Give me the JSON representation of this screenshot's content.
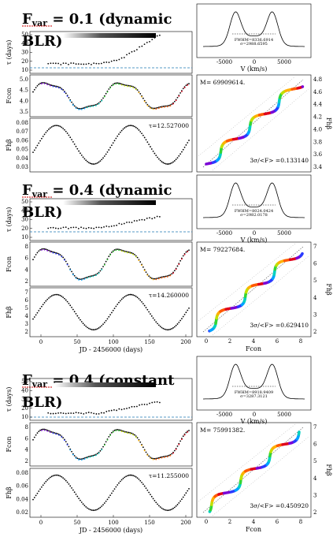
{
  "panels": [
    {
      "title_main": "F",
      "title_sub": "var",
      "title_rest": " = 0.1 (dynamic",
      "title_line2": "BLR)",
      "mbh": "69909614.",
      "sigma_ratio": "3σ/<F> =0.133140",
      "tau_text": "τ=12.527000",
      "fwhm": "FWHM=8336.6914",
      "sigma_v": "σ=2988.6595",
      "flux_label_x": "Fcon",
      "flux_label_y": "Fhβ"
    },
    {
      "title_main": "F",
      "title_sub": "var",
      "title_rest": " = 0.4 (dynamic",
      "title_line2": "BLR)",
      "mbh": "79227684.",
      "sigma_ratio": "3σ/<F> =0.629410",
      "tau_text": "τ=14.260000",
      "fwhm": "FWHM=8024.0424",
      "sigma_v": "σ=2982.0178",
      "flux_label_x": "Fcon",
      "flux_label_y": "Fhβ"
    },
    {
      "title_main": "F",
      "title_sub": "var",
      "title_rest": " = 0.4 (constant",
      "title_line2": "BLR)",
      "mbh": "75991382.",
      "sigma_ratio": "3σ/<F> =0.450920",
      "tau_text": "τ=11.255000",
      "fwhm": "FWHM=8918.9409",
      "sigma_v": "σ=3287.3121",
      "flux_label_x": "Fcon",
      "flux_label_y": "Fhβ"
    }
  ],
  "axes": {
    "tau_label": "τ (days)",
    "fcon_label": "Fcon",
    "fhb_label": "Fhβ",
    "v_label": "V (km/s)",
    "jd_label": "JD - 2456000 (days)"
  },
  "chart_data": [
    {
      "type": "line",
      "title": "Fvar = 0.1 (dynamic BLR)",
      "tau_series": {
        "x": [
          10,
          20,
          30,
          40,
          50,
          60,
          70,
          80,
          90,
          100,
          110,
          120,
          130,
          140,
          150,
          160
        ],
        "y": [
          10,
          10,
          11,
          11,
          12,
          13,
          14,
          15,
          18,
          22,
          30,
          36,
          38,
          40,
          42,
          48
        ]
      },
      "fcon_ylim": [
        3.4,
        5.2
      ],
      "fhb_ylim": [
        0.02,
        0.085
      ],
      "fhb_series": {
        "x": [
          0,
          20,
          40,
          60,
          80,
          100,
          120,
          140,
          160,
          180,
          200
        ],
        "y": [
          0.068,
          0.072,
          0.08,
          0.06,
          0.03,
          0.05,
          0.082,
          0.055,
          0.032,
          0.03,
          0.042
        ]
      },
      "tau": 12.527
    },
    {
      "type": "line",
      "title": "Fvar = 0.4 (dynamic BLR)",
      "fcon_ylim": [
        1.5,
        8.5
      ],
      "tau": 14.26
    },
    {
      "type": "line",
      "title": "Fvar = 0.4 (constant BLR)",
      "fcon_ylim": [
        1.5,
        8.5
      ],
      "tau": 11.255
    }
  ],
  "ticks": {
    "tau": [
      "50",
      "40",
      "30",
      "20",
      "10"
    ],
    "fcon1": [
      "5.0",
      "4.5",
      "4.0",
      "3.5"
    ],
    "fhb1": [
      "0.08",
      "0.07",
      "0.06",
      "0.05",
      "0.04",
      "0.03"
    ],
    "fcon2": [
      "8",
      "6",
      "4",
      "2"
    ],
    "fhb2": [
      "7",
      "6",
      "5",
      "4",
      "3",
      "2"
    ],
    "fhb3": [
      "0.08",
      "0.06",
      "0.04",
      "0.02"
    ],
    "jd": [
      "0",
      "50",
      "100",
      "150",
      "200"
    ],
    "v": [
      "-5000",
      "0",
      "5000"
    ],
    "right1": [
      "4.8",
      "4.6",
      "4.4",
      "4.2",
      "4.0",
      "3.8",
      "3.6",
      "3.4"
    ],
    "right2": [
      "7",
      "6",
      "5",
      "4",
      "3",
      "2"
    ],
    "fconx": [
      "0",
      "2",
      "4",
      "6",
      "8"
    ],
    "fconx1": [
      "3.4",
      "3.6",
      "3.8",
      "4.0",
      "4.2",
      "4.4",
      "4.6"
    ]
  },
  "colors": {
    "accent_red": "#cc0000",
    "blue_dash": "#1f77b4"
  }
}
